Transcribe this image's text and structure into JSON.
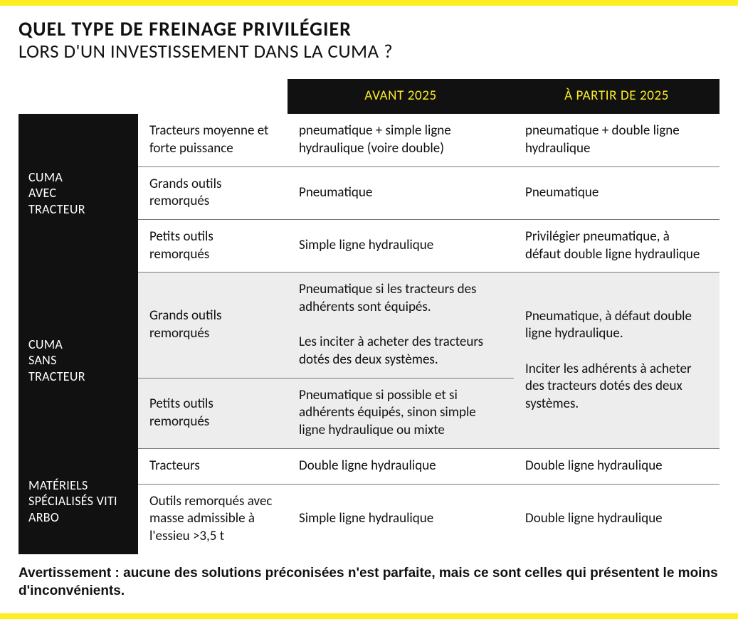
{
  "colors": {
    "accent": "#fcee21",
    "header_bg": "#111111",
    "header_text": "#fcee21",
    "group_bg": "#111111",
    "group_text": "#ffffff",
    "rule": "#777777",
    "shade": "#ededed",
    "text": "#111111",
    "page_bg": "#ffffff"
  },
  "heading": {
    "line1": "QUEL TYPE DE FREINAGE PRIVILÉGIER",
    "line2": "LORS D'UN INVESTISSEMENT DANS LA CUMA ?"
  },
  "periods": {
    "before": "AVANT 2025",
    "after": "À PARTIR DE 2025"
  },
  "groups": [
    {
      "label": "CUMA\nAVEC\nTRACTEUR",
      "shaded": false,
      "rows": [
        {
          "type": "Tracteurs moyenne et forte puissance",
          "before": "pneumatique + simple ligne hydraulique (voire double)",
          "after": "pneumatique + double ligne hydraulique"
        },
        {
          "type": "Grands outils remorqués",
          "before": "Pneumatique",
          "after": "Pneumatique"
        },
        {
          "type": "Petits outils remorqués",
          "before": "Simple ligne hydraulique",
          "after": "Privilégier pneumatique, à défaut double ligne hydraulique"
        }
      ]
    },
    {
      "label": "CUMA\nSANS\nTRACTEUR",
      "shaded": true,
      "after_merged": "Pneumatique, à défaut double ligne hydraulique.\n\nInciter les adhérents à acheter des tracteurs dotés des deux systèmes.",
      "rows": [
        {
          "type": "Grands outils remorqués",
          "before": "Pneumatique si les tracteurs des adhérents sont équipés.\n\nLes inciter à acheter des tracteurs dotés des deux systèmes."
        },
        {
          "type": "Petits outils remorqués",
          "before": "Pneumatique si possible et si adhérents équipés, sinon simple ligne hydraulique ou mixte"
        }
      ]
    },
    {
      "label": "MATÉRIELS SPÉCIALISÉS VITI ARBO",
      "shaded": false,
      "rows": [
        {
          "type": "Tracteurs",
          "before": "Double ligne hydraulique",
          "after": "Double ligne hydraulique"
        },
        {
          "type": "Outils remorqués avec masse admissible à l'essieu >3,5 t",
          "before": "Simple ligne hydraulique",
          "after": "Double ligne hydraulique"
        }
      ]
    }
  ],
  "warning": "Avertissement : aucune des solutions préconisées n'est parfaite, mais ce sont celles qui présentent le moins d'inconvénients."
}
